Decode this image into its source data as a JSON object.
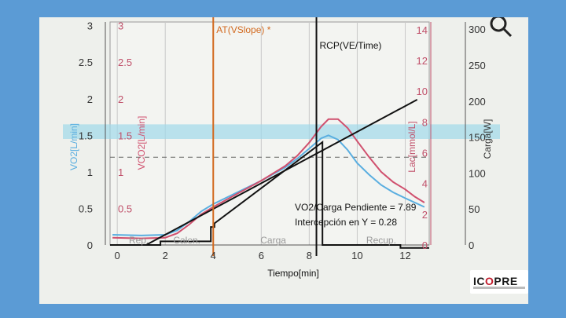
{
  "chart_data": {
    "type": "line",
    "xlabel": "Tiempo[min]",
    "x_ticks": [
      "0",
      "2",
      "4",
      "6",
      "8",
      "10",
      "12"
    ],
    "xlim": [
      -0.3,
      13
    ],
    "y_axes": {
      "vo2": {
        "label": "VO2[L/min]",
        "ticks": [
          "0",
          "0.5",
          "1",
          "1.5",
          "2",
          "2.5",
          "3"
        ],
        "range": [
          0,
          3.05
        ]
      },
      "vco2": {
        "label": "VCO2[L/min]",
        "ticks": [
          "0.5",
          "1",
          "1.5",
          "2",
          "2.5",
          "3"
        ],
        "range": [
          0,
          3.05
        ]
      },
      "lac": {
        "label": "Lac[mmol/L]",
        "ticks": [
          "0",
          "2",
          "4",
          "6",
          "8",
          "10",
          "12",
          "14"
        ],
        "range": [
          0,
          14.5
        ]
      },
      "carga": {
        "label": "Carga[W]",
        "ticks": [
          "0",
          "50",
          "100",
          "150",
          "200",
          "250",
          "300"
        ],
        "range": [
          0,
          310
        ]
      }
    },
    "markers": [
      {
        "label": "AT(VSlope) *",
        "x": 4.0,
        "color": "#d2691e"
      },
      {
        "label": "RCP(VE/Time)",
        "x": 8.3,
        "color": "#111111"
      }
    ],
    "phases": [
      "Rep.",
      "Calen.",
      "Carga",
      "Recup."
    ],
    "annotations": [
      "VO2/Carga Pendiente = 7.89",
      "Intercepción en Y = 0.28"
    ],
    "band_vo2": [
      1.45,
      1.65
    ],
    "dashed_vo2": 1.2,
    "series": [
      {
        "axis": "vo2",
        "color": "#5aaee0",
        "x": [
          -0.2,
          1.0,
          2.0,
          2.5,
          3.0,
          3.5,
          4.0,
          5.0,
          6.0,
          7.0,
          7.5,
          8.0,
          8.5,
          8.8,
          9.2,
          9.6,
          10.0,
          10.5,
          11.0,
          11.5,
          12.0,
          12.4,
          12.8
        ],
        "y": [
          0.14,
          0.13,
          0.14,
          0.2,
          0.32,
          0.46,
          0.56,
          0.72,
          0.88,
          1.06,
          1.18,
          1.32,
          1.46,
          1.5,
          1.44,
          1.3,
          1.12,
          0.96,
          0.82,
          0.72,
          0.64,
          0.58,
          0.52
        ]
      },
      {
        "axis": "vco2",
        "color": "#d0506e",
        "x": [
          -0.2,
          1.0,
          2.0,
          2.5,
          3.0,
          3.5,
          4.0,
          5.0,
          6.0,
          7.0,
          7.5,
          8.0,
          8.5,
          8.8,
          9.2,
          9.6,
          10.0,
          10.5,
          11.0,
          11.5,
          12.0,
          12.4,
          12.8
        ],
        "y": [
          0.1,
          0.09,
          0.1,
          0.16,
          0.28,
          0.42,
          0.52,
          0.7,
          0.88,
          1.08,
          1.22,
          1.4,
          1.62,
          1.72,
          1.72,
          1.6,
          1.42,
          1.2,
          1.0,
          0.86,
          0.76,
          0.66,
          0.58
        ]
      },
      {
        "axis": "carga",
        "color": "#111111",
        "x": [
          -0.3,
          1.8,
          1.8,
          3.9,
          3.9,
          4.05,
          4.05,
          8.55,
          8.55,
          11.8,
          11.8,
          13.0
        ],
        "y": [
          0,
          0,
          5,
          5,
          25,
          25,
          30,
          143,
          0,
          0,
          -4,
          -4
        ]
      },
      {
        "axis": "carga",
        "color": "#111111",
        "x": [
          1.2,
          12.5
        ],
        "y": [
          0,
          202
        ]
      }
    ]
  },
  "logo": {
    "left": "IC",
    "mark": "O",
    "right": "PRE"
  }
}
